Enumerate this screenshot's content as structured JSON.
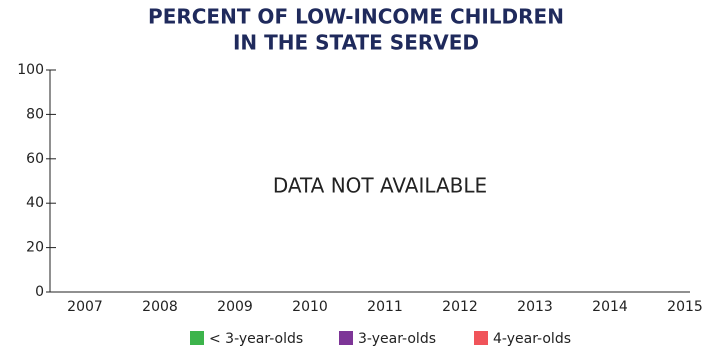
{
  "chart_data": {
    "type": "bar",
    "title": "PERCENT OF LOW-INCOME CHILDREN",
    "subtitle": "IN THE STATE SERVED",
    "annotation": "DATA NOT AVAILABLE",
    "categories": [
      "2007",
      "2008",
      "2009",
      "2010",
      "2011",
      "2012",
      "2013",
      "2014",
      "2015"
    ],
    "series": [
      {
        "name": "< 3-year-olds",
        "color": "#3cb44b",
        "values": [
          null,
          null,
          null,
          null,
          null,
          null,
          null,
          null,
          null
        ]
      },
      {
        "name": "3-year-olds",
        "color": "#7d3597",
        "values": [
          null,
          null,
          null,
          null,
          null,
          null,
          null,
          null,
          null
        ]
      },
      {
        "name": "4-year-olds",
        "color": "#f0545a",
        "values": [
          null,
          null,
          null,
          null,
          null,
          null,
          null,
          null,
          null
        ]
      }
    ],
    "ylim": [
      0,
      100
    ],
    "yticks": [
      0,
      20,
      40,
      60,
      80,
      100
    ],
    "grid": false
  }
}
